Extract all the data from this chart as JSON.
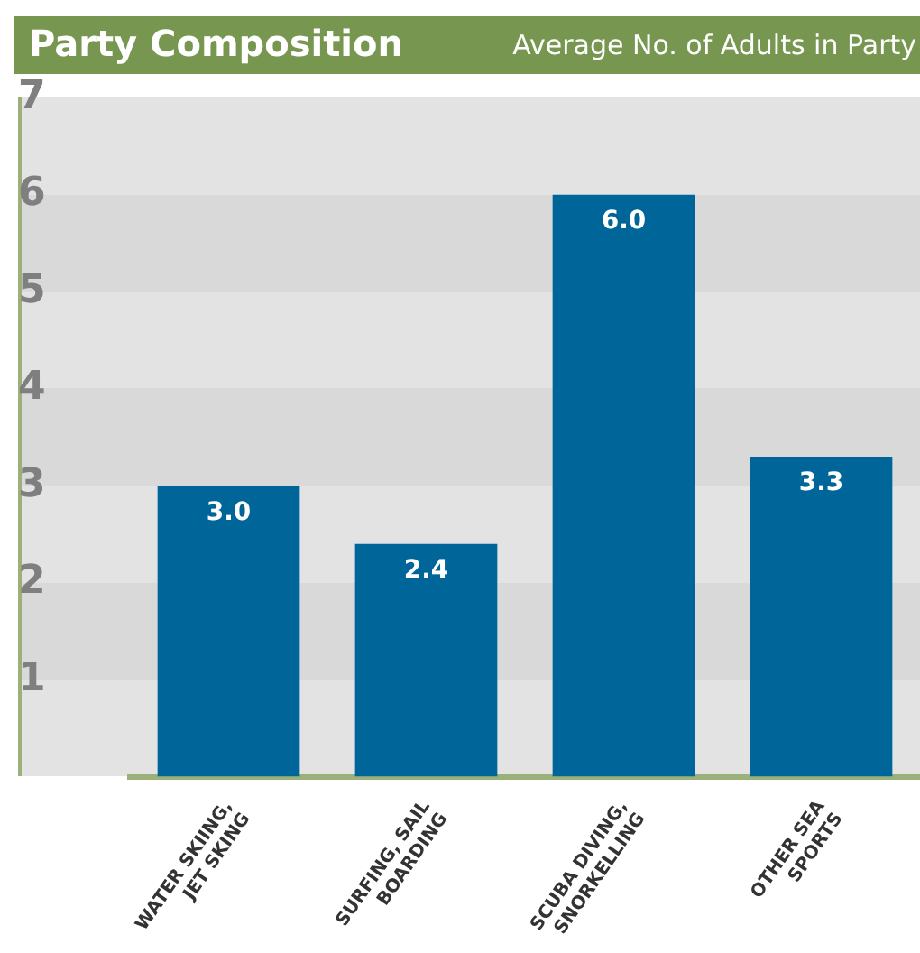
{
  "chart_data": {
    "type": "bar",
    "title": "Party Composition",
    "subtitle": "Average No. of Adults in Party",
    "categories": [
      "WATER SKIING,\nJET SKING",
      "SURFING, SAIL\nBOARDING",
      "SCUBA DIVING,\nSNORKELLING",
      "OTHER SEA\nSPORTS"
    ],
    "values": [
      3.0,
      2.4,
      6.0,
      3.3
    ],
    "value_labels": [
      "3.0",
      "2.4",
      "6.0",
      "3.3"
    ],
    "color": "#006699",
    "ylim": [
      0,
      7
    ],
    "yticks": [
      1,
      2,
      3,
      4,
      5,
      6,
      7
    ],
    "legend": false
  }
}
